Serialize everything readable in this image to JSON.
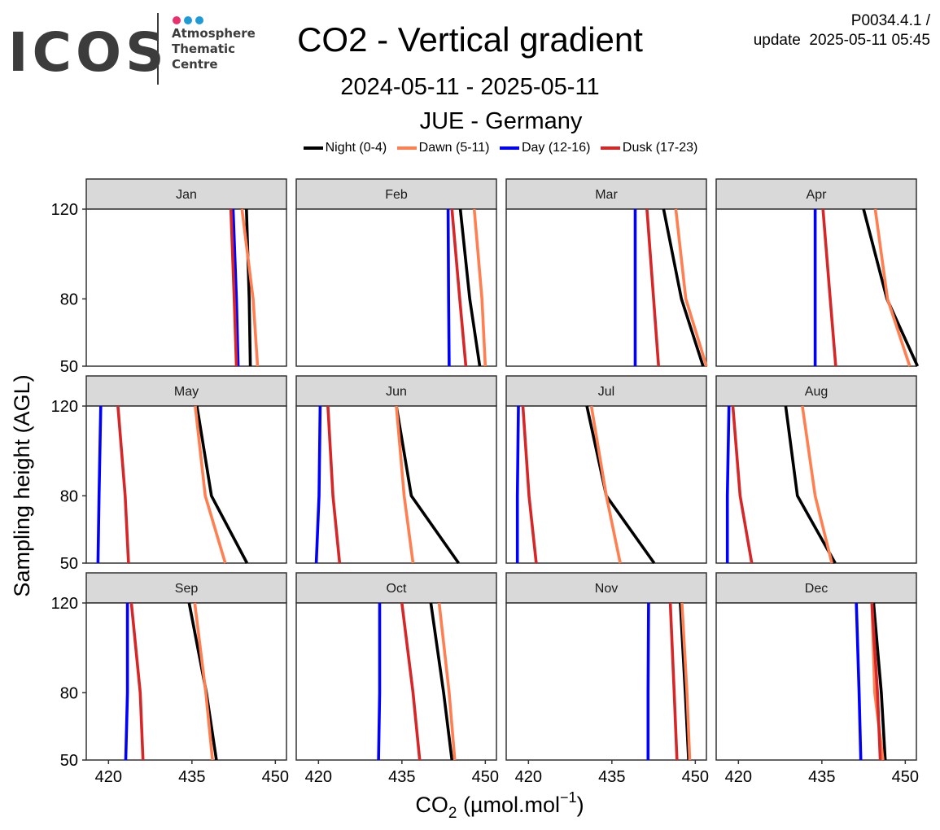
{
  "logo": {
    "text": "ICOS",
    "sub_lines": [
      "Atmosphere",
      "Thematic",
      "Centre"
    ],
    "dot_colors": [
      "#e8316e",
      "#1e9ad6",
      "#1e9ad6"
    ]
  },
  "header": {
    "title": "CO2 - Vertical gradient",
    "date_range": "2024-05-11 - 2025-05-11",
    "station": "JUE - Germany",
    "version_line1": "P0034.4.1 /",
    "version_line2": "update  2025-05-11 05:45"
  },
  "legend": [
    {
      "label": "Night (0-4)",
      "color": "#000000"
    },
    {
      "label": "Dawn (5-11)",
      "color": "#ff7f50"
    },
    {
      "label": "Day (12-16)",
      "color": "#0000ff"
    },
    {
      "label": "Dusk (17-23)",
      "color": "#d62728"
    }
  ],
  "chart_data": {
    "type": "line",
    "facets": "month",
    "xlabel": "CO2 (µmol.mol-1)",
    "xlabel_main": "CO",
    "xlabel_sub": "2",
    "xlabel_rest": " (µmol.mol",
    "xlabel_sup": "−1",
    "xlabel_end": ")",
    "ylabel": "Sampling height (AGL)",
    "xlim": [
      416,
      452
    ],
    "ylim": [
      50,
      120
    ],
    "x_ticks": [
      420,
      435,
      450
    ],
    "y_ticks": [
      50,
      80,
      120
    ],
    "heights": [
      50,
      80,
      120
    ],
    "series_order": [
      "Night (0-4)",
      "Dawn (5-11)",
      "Day (12-16)",
      "Dusk (17-23)"
    ],
    "series_colors": [
      "#000000",
      "#ff7f50",
      "#0000ff",
      "#d62728"
    ],
    "panels": [
      {
        "month": "Jan",
        "series": [
          [
            445.5,
            445.3,
            444.8
          ],
          [
            446.8,
            446.0,
            444.0
          ],
          [
            443.3,
            443.0,
            442.4
          ],
          [
            443.0,
            442.6,
            442.0
          ]
        ]
      },
      {
        "month": "Feb",
        "series": [
          [
            449.0,
            447.2,
            445.5
          ],
          [
            450.0,
            449.4,
            448.0
          ],
          [
            443.5,
            443.4,
            443.3
          ],
          [
            446.5,
            445.4,
            444.0
          ]
        ]
      },
      {
        "month": "Mar",
        "series": [
          [
            451.4,
            447.5,
            444.3
          ],
          [
            452.0,
            448.3,
            446.5
          ],
          [
            439.2,
            439.2,
            439.2
          ],
          [
            443.4,
            442.5,
            441.3
          ]
        ]
      },
      {
        "month": "Apr",
        "series": [
          [
            452.2,
            446.7,
            442.5
          ],
          [
            450.8,
            446.8,
            444.6
          ],
          [
            433.8,
            433.8,
            433.8
          ],
          [
            437.5,
            436.5,
            435.2
          ]
        ]
      },
      {
        "month": "May",
        "series": [
          [
            444.9,
            438.5,
            435.9
          ],
          [
            441.0,
            437.4,
            435.6
          ],
          [
            418.1,
            418.3,
            418.6
          ],
          [
            423.6,
            423.0,
            421.7
          ]
        ]
      },
      {
        "month": "Jun",
        "series": [
          [
            445.2,
            436.7,
            434.0
          ],
          [
            437.0,
            435.4,
            434.0
          ],
          [
            419.6,
            420.1,
            420.3
          ],
          [
            423.8,
            422.6,
            421.7
          ]
        ]
      },
      {
        "month": "Jul",
        "series": [
          [
            442.6,
            434.0,
            430.5
          ],
          [
            436.5,
            434.0,
            431.3
          ],
          [
            418.0,
            418.0,
            418.2
          ],
          [
            421.4,
            420.1,
            419.0
          ]
        ]
      },
      {
        "month": "Aug",
        "series": [
          [
            437.4,
            430.6,
            428.5
          ],
          [
            436.8,
            433.8,
            431.5
          ],
          [
            418.0,
            418.0,
            418.3
          ],
          [
            422.4,
            420.3,
            419.0
          ]
        ]
      },
      {
        "month": "Sep",
        "series": [
          [
            439.4,
            437.6,
            434.5
          ],
          [
            438.7,
            437.5,
            435.5
          ],
          [
            423.1,
            423.4,
            423.4
          ],
          [
            426.2,
            425.7,
            424.1
          ]
        ]
      },
      {
        "month": "Oct",
        "series": [
          [
            444.0,
            442.5,
            440.2
          ],
          [
            444.5,
            443.5,
            441.7
          ],
          [
            430.8,
            431.0,
            431.0
          ],
          [
            438.2,
            437.0,
            435.0
          ]
        ]
      },
      {
        "month": "Nov",
        "series": [
          [
            448.8,
            448.2,
            447.3
          ],
          [
            449.0,
            448.5,
            447.6
          ],
          [
            441.5,
            441.5,
            441.6
          ],
          [
            446.7,
            446.2,
            445.5
          ]
        ]
      },
      {
        "month": "Dec",
        "series": [
          [
            446.4,
            445.7,
            444.3
          ],
          [
            446.0,
            444.5,
            444.0
          ],
          [
            442.0,
            441.7,
            441.2
          ],
          [
            445.5,
            445.0,
            444.0
          ]
        ]
      }
    ]
  }
}
